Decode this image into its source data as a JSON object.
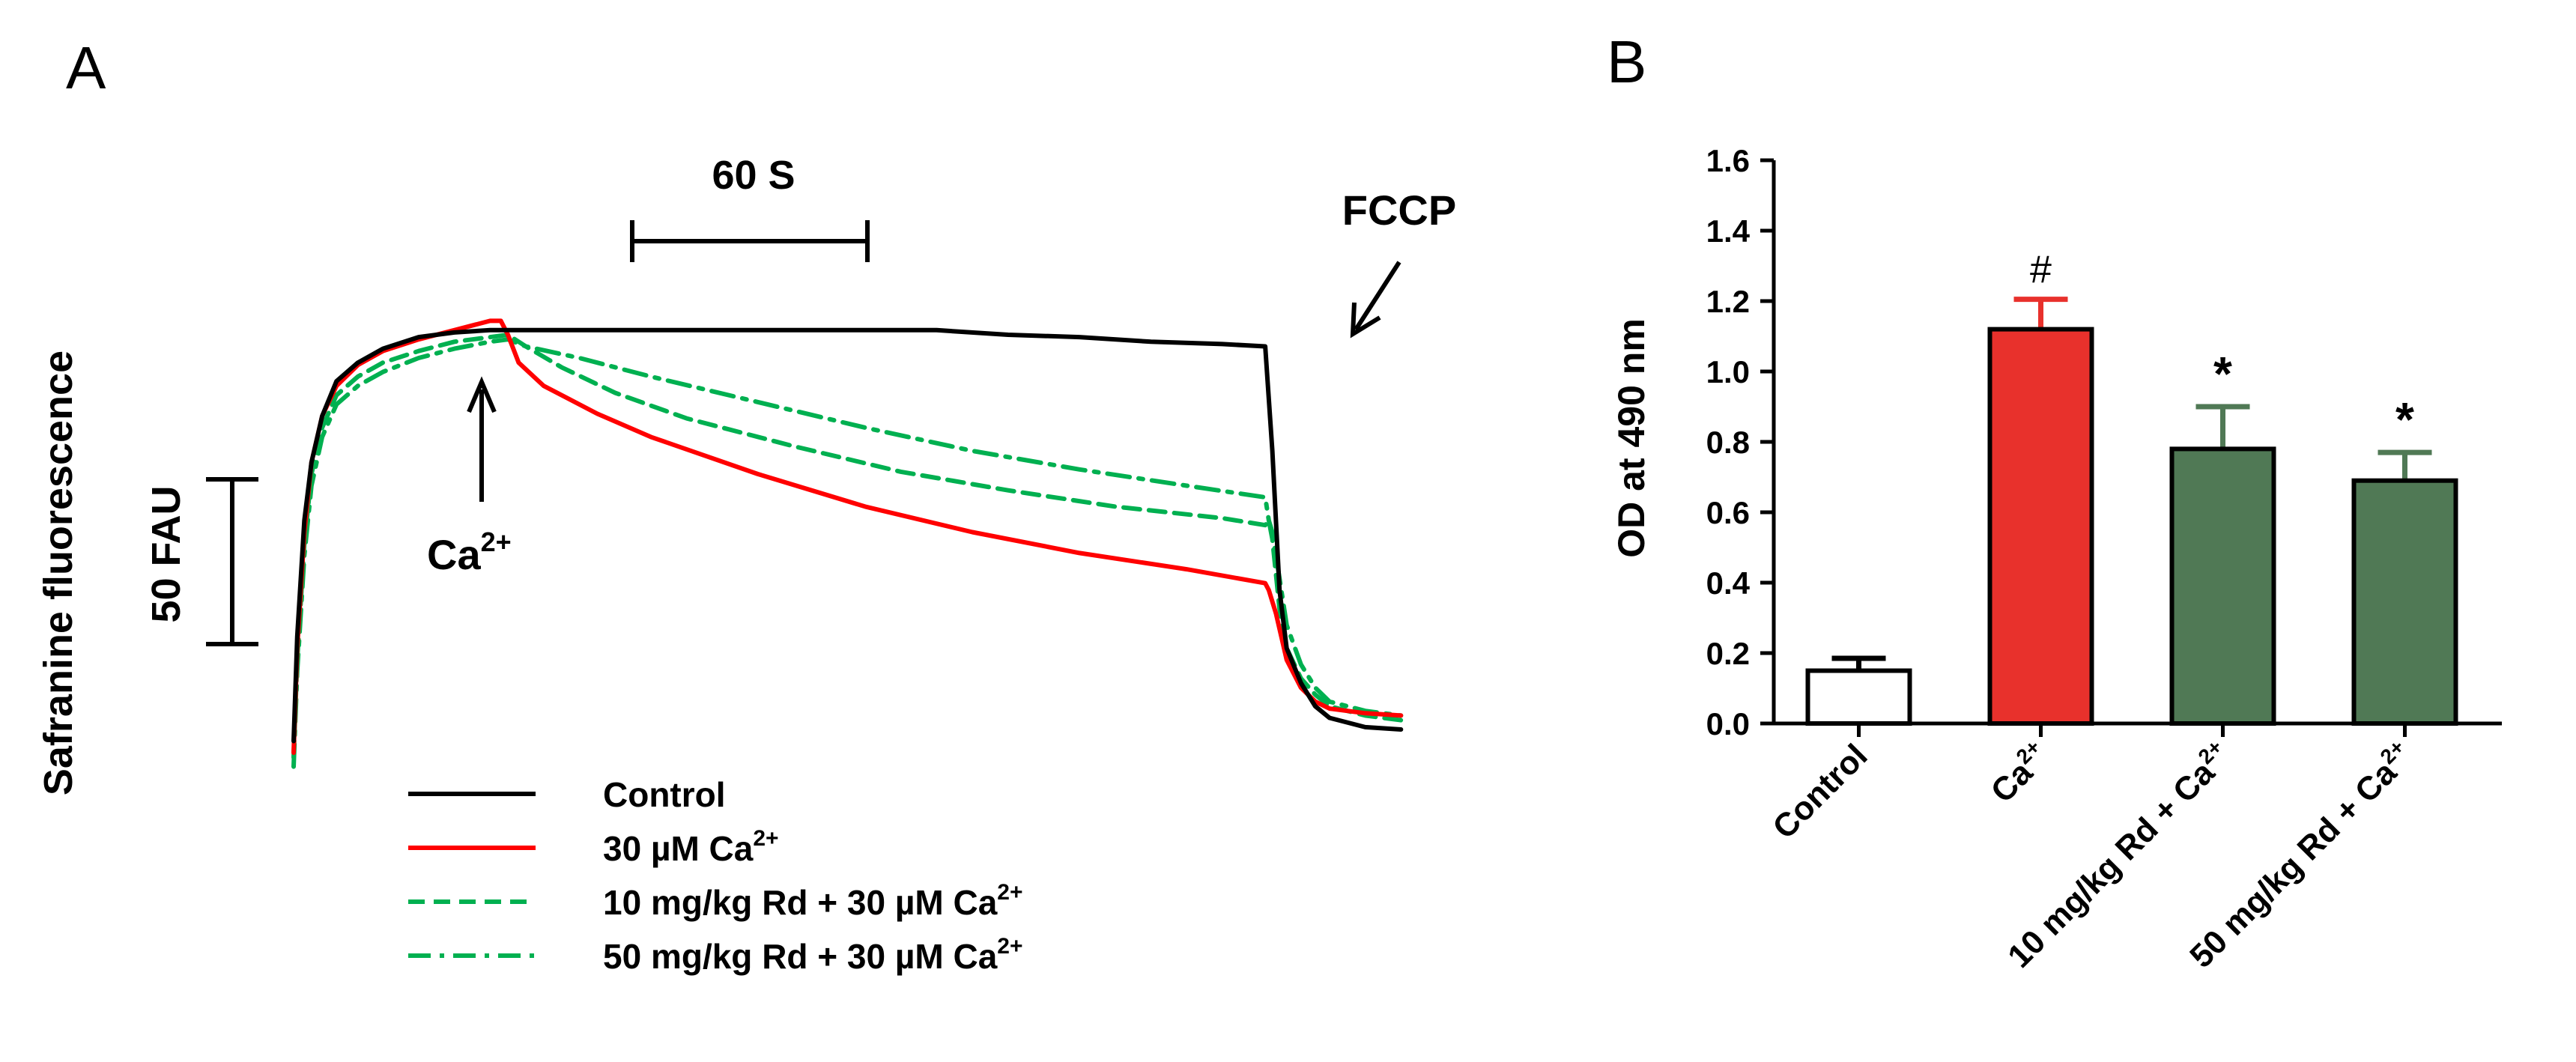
{
  "figure": {
    "panel_a_label": "A",
    "panel_b_label": "B"
  },
  "chart_data": [
    {
      "type": "line",
      "panel": "A",
      "title": "",
      "ylabel": "Safranine fluorescence",
      "xlabel": "",
      "x_units": "s",
      "y_units": "FAU",
      "xlim": [
        0,
        320
      ],
      "ylim": [
        0,
        200
      ],
      "time_scale_bar": {
        "label": "60 S",
        "value": 60
      },
      "fluor_scale_bar": {
        "label": "50 FAU",
        "value": 50
      },
      "annotations": {
        "calcium": {
          "label": "Ca",
          "sup": "2+",
          "x": 60
        },
        "fccp": {
          "label": "FCCP",
          "x": 272
        }
      },
      "legend": [
        {
          "key": "control",
          "prefix": "Control",
          "sup": "",
          "color": "#000000",
          "dash": "solid"
        },
        {
          "key": "ca30",
          "prefix": "30 µM Ca",
          "sup": "2+",
          "color": "#ff0000",
          "dash": "solid"
        },
        {
          "key": "rd10",
          "prefix": "10 mg/kg Rd + 30 µM Ca",
          "sup": "2+",
          "color": "#00b050",
          "dash": "dashed"
        },
        {
          "key": "rd50",
          "prefix": "50 mg/kg Rd + 30 µM Ca",
          "sup": "2+",
          "color": "#00b050",
          "dash": "dashdot"
        }
      ],
      "series": [
        {
          "key": "control",
          "name": "Control",
          "color": "#000000",
          "x": [
            0,
            1,
            3,
            5,
            8,
            12,
            18,
            25,
            35,
            45,
            55,
            65,
            80,
            100,
            130,
            160,
            180,
            200,
            220,
            240,
            260,
            272,
            274,
            276,
            278,
            282,
            286,
            290,
            300,
            310
          ],
          "y": [
            5,
            50,
            100,
            125,
            145,
            160,
            168,
            174,
            179,
            181,
            182,
            182,
            182,
            182,
            182,
            182,
            182,
            180,
            179,
            177,
            176,
            175,
            130,
            70,
            45,
            30,
            20,
            15,
            11,
            10
          ]
        },
        {
          "key": "ca30",
          "name": "30 µM Ca2+",
          "color": "#ff0000",
          "x": [
            0,
            1,
            3,
            5,
            8,
            12,
            18,
            25,
            35,
            45,
            55,
            58,
            60,
            63,
            70,
            85,
            100,
            130,
            160,
            190,
            220,
            250,
            272,
            273,
            275,
            278,
            282,
            286,
            290,
            300,
            310
          ],
          "y": -1
        },
        {
          "key": "rd10",
          "name": "10 mg/kg Rd + 30 µM Ca2+",
          "color": "#00b050",
          "x": [
            0,
            1,
            3,
            5,
            8,
            12,
            18,
            25,
            35,
            45,
            55,
            60,
            65,
            75,
            90,
            110,
            140,
            170,
            200,
            230,
            260,
            272,
            273,
            274,
            276,
            278,
            282,
            286,
            290,
            300,
            310
          ],
          "y": [
            -2,
            40,
            90,
            120,
            140,
            154,
            162,
            168,
            173,
            177,
            179,
            180,
            175,
            166,
            155,
            144,
            132,
            121,
            113,
            106,
            101,
            98,
            100,
            92,
            62,
            45,
            32,
            25,
            20,
            16,
            14
          ]
        },
        {
          "key": "rd50",
          "name": "50 mg/kg Rd + 30 µM Ca2+",
          "color": "#00b050",
          "x": [
            0,
            1,
            3,
            5,
            8,
            12,
            18,
            25,
            35,
            45,
            55,
            60,
            65,
            80,
            100,
            130,
            160,
            190,
            220,
            250,
            272,
            273,
            274,
            276,
            278,
            282,
            286,
            290,
            300,
            310
          ],
          "y": [
            -6,
            35,
            85,
            115,
            136,
            150,
            158,
            164,
            170,
            174,
            177,
            178,
            175,
            170,
            162,
            151,
            140,
            130,
            122,
            115,
            110,
            100,
            95,
            75,
            55,
            38,
            28,
            22,
            18,
            16
          ]
        }
      ]
    },
    {
      "type": "bar",
      "panel": "B",
      "title": "",
      "xlabel": "",
      "ylabel": "OD at 490 nm",
      "ylim": [
        0,
        1.6
      ],
      "yticks": [
        "0.0",
        "0.2",
        "0.4",
        "0.6",
        "0.8",
        "1.0",
        "1.2",
        "1.4",
        "1.6"
      ],
      "categories": [
        {
          "prefix": "Control",
          "sup": ""
        },
        {
          "prefix": "Ca",
          "sup": "2+"
        },
        {
          "prefix": "10 mg/kg Rd + Ca",
          "sup": "2+"
        },
        {
          "prefix": "50 mg/kg Rd + Ca",
          "sup": "2+"
        }
      ],
      "values": [
        0.15,
        1.12,
        0.78,
        0.69
      ],
      "errors": [
        0.035,
        0.085,
        0.12,
        0.08
      ],
      "colors": [
        "#ffffff",
        "#e8312c",
        "#507955",
        "#507955"
      ],
      "significance": [
        "",
        "#",
        "*",
        "*"
      ]
    }
  ]
}
